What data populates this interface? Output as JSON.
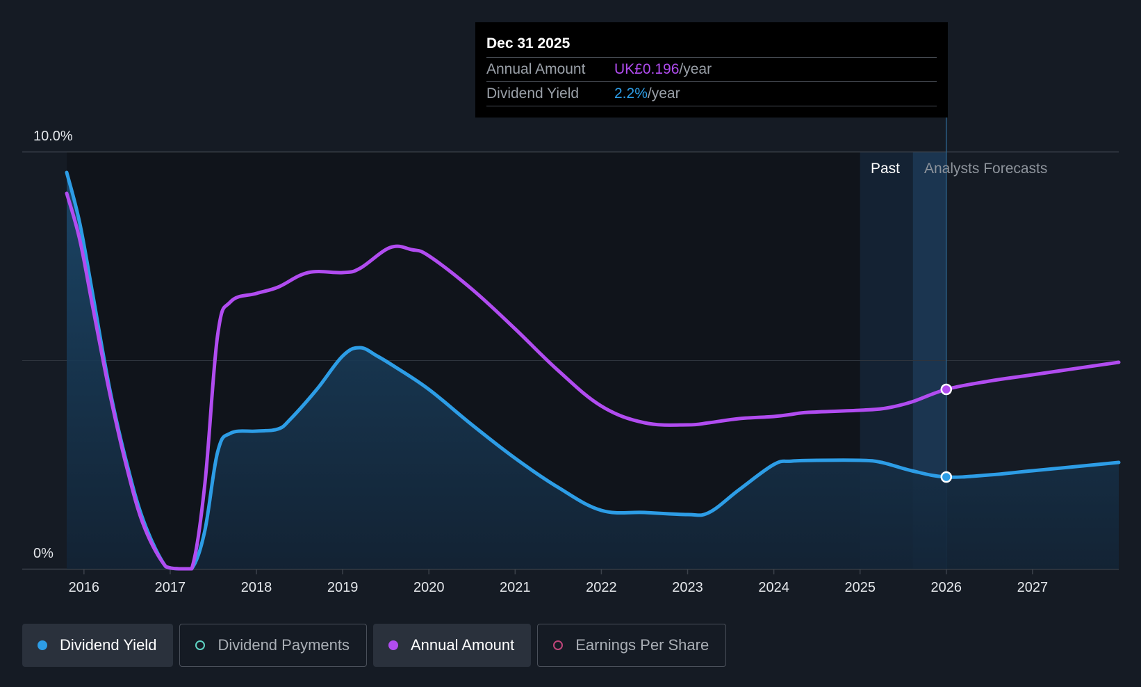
{
  "tooltip": {
    "date": "Dec 31 2025",
    "annual_label": "Annual Amount",
    "annual_value": "UK£0.196",
    "annual_unit": "/year",
    "yield_label": "Dividend Yield",
    "yield_value": "2.2%",
    "yield_unit": "/year"
  },
  "legend": {
    "dividend_yield": "Dividend Yield",
    "dividend_payments": "Dividend Payments",
    "annual_amount": "Annual Amount",
    "earnings_per_share": "Earnings Per Share"
  },
  "colors": {
    "yield": "#2d9de6",
    "annual": "#b14cf0",
    "background": "#151b24"
  },
  "chart_data": {
    "type": "line",
    "title": "",
    "xlabel": "",
    "ylabel": "",
    "ylim": [
      0,
      10
    ],
    "xlim": [
      2015.8,
      2028.0
    ],
    "ytick_labels": [
      "0%",
      "10.0%"
    ],
    "xtick_labels": [
      "2016",
      "2017",
      "2018",
      "2019",
      "2020",
      "2021",
      "2022",
      "2023",
      "2024",
      "2025",
      "2026",
      "2027"
    ],
    "xtick_values": [
      2016,
      2017,
      2018,
      2019,
      2020,
      2021,
      2022,
      2023,
      2024,
      2025,
      2026,
      2027
    ],
    "regions": {
      "past_label": "Past",
      "forecast_label": "Analysts Forecasts",
      "past_start": 2025.0,
      "divider": 2026.0
    },
    "marker_x": 2026.0,
    "series": [
      {
        "name": "Dividend Yield",
        "color": "#2d9de6",
        "area": true,
        "x": [
          2015.8,
          2015.95,
          2016.1,
          2016.3,
          2016.5,
          2016.7,
          2016.95,
          2017.1,
          2017.25,
          2017.4,
          2017.55,
          2017.7,
          2018.0,
          2018.25,
          2018.4,
          2018.7,
          2019.0,
          2019.2,
          2019.4,
          2019.6,
          2020.0,
          2020.5,
          2021.0,
          2021.5,
          2022.0,
          2022.5,
          2023.0,
          2023.25,
          2023.6,
          2024.0,
          2024.2,
          2024.5,
          2025.0,
          2025.25,
          2025.6,
          2026.0,
          2026.5,
          2027.0,
          2028.0
        ],
        "values": [
          9.5,
          8.3,
          6.6,
          4.3,
          2.5,
          1.1,
          0.05,
          0.0,
          0.0,
          0.9,
          2.8,
          3.25,
          3.3,
          3.35,
          3.6,
          4.3,
          5.1,
          5.3,
          5.1,
          4.85,
          4.3,
          3.45,
          2.65,
          1.95,
          1.4,
          1.35,
          1.3,
          1.35,
          1.9,
          2.5,
          2.58,
          2.6,
          2.6,
          2.55,
          2.35,
          2.2,
          2.25,
          2.35,
          2.55
        ]
      },
      {
        "name": "Annual Amount",
        "color": "#b14cf0",
        "area": false,
        "x": [
          2015.8,
          2015.95,
          2016.1,
          2016.3,
          2016.5,
          2016.7,
          2016.95,
          2017.1,
          2017.25,
          2017.4,
          2017.55,
          2017.7,
          2018.0,
          2018.25,
          2018.6,
          2019.0,
          2019.2,
          2019.55,
          2019.8,
          2020.0,
          2020.5,
          2021.0,
          2021.5,
          2022.0,
          2022.5,
          2023.0,
          2023.25,
          2023.6,
          2024.0,
          2024.2,
          2024.4,
          2025.0,
          2025.3,
          2025.6,
          2026.0,
          2026.5,
          2027.0,
          2028.0
        ],
        "values": [
          9.0,
          7.9,
          6.3,
          4.2,
          2.4,
          1.0,
          0.05,
          0.0,
          0.0,
          2.0,
          5.6,
          6.4,
          6.6,
          6.75,
          7.1,
          7.1,
          7.2,
          7.7,
          7.65,
          7.5,
          6.7,
          5.75,
          4.75,
          3.9,
          3.5,
          3.45,
          3.5,
          3.6,
          3.65,
          3.7,
          3.75,
          3.8,
          3.85,
          4.0,
          4.3,
          4.5,
          4.65,
          4.95
        ]
      }
    ]
  }
}
